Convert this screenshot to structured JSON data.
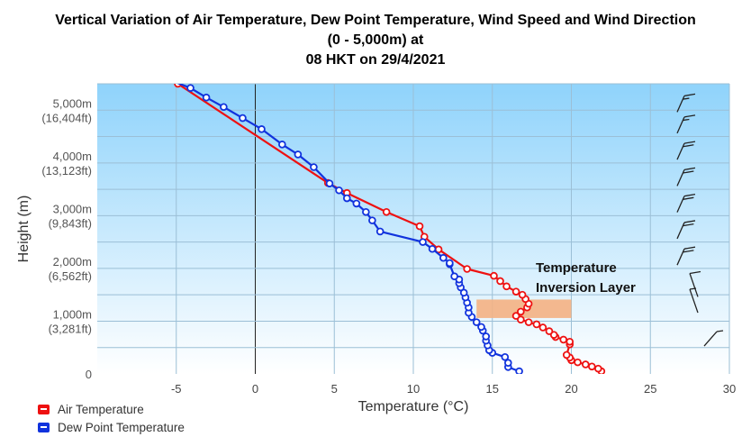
{
  "title": {
    "line1": "Vertical Variation of Air Temperature, Dew Point Temperature, Wind Speed and Wind Direction",
    "line2": "(0 - 5,000m) at",
    "line3": "08 HKT on 29/4/2021"
  },
  "legend": {
    "air": "Air Temperature",
    "dew": "Dew Point Temperature"
  },
  "colors": {
    "air": "#ee1111",
    "dew": "#1133dd",
    "inversion": "#f4b183",
    "plot_top": "#8fd3fb",
    "plot_bottom": "#ffffff"
  },
  "chart_data": {
    "type": "line",
    "xlabel": "Temperature (°C)",
    "ylabel": "Height (m)",
    "xlim": [
      -10,
      30
    ],
    "ylim": [
      0,
      5500
    ],
    "grid": true,
    "x_ticks": [
      "-5",
      "0",
      "5",
      "10",
      "15",
      "20",
      "25",
      "30"
    ],
    "x_tick_values": [
      -5,
      0,
      5,
      10,
      15,
      20,
      25,
      30
    ],
    "y_ticks": [
      {
        "value": 0,
        "label": "0",
        "sub": ""
      },
      {
        "value": 1000,
        "label": "1,000m",
        "sub": "(3,281ft)"
      },
      {
        "value": 2000,
        "label": "2,000m",
        "sub": "(6,562ft)"
      },
      {
        "value": 3000,
        "label": "3,000m",
        "sub": "(9,843ft)"
      },
      {
        "value": 4000,
        "label": "4,000m",
        "sub": "(13,123ft)"
      },
      {
        "value": 5000,
        "label": "5,000m",
        "sub": "(16,404ft)"
      }
    ],
    "annotation": {
      "line1": "Temperature",
      "line2": "Inversion Layer",
      "x": [
        14,
        20
      ],
      "y": [
        1060,
        1410
      ]
    },
    "series": [
      {
        "name": "Air Temperature",
        "points": [
          [
            21.9,
            50
          ],
          [
            21.7,
            100
          ],
          [
            21.3,
            140
          ],
          [
            20.9,
            180
          ],
          [
            20.4,
            220
          ],
          [
            20.0,
            260
          ],
          [
            19.9,
            310
          ],
          [
            19.7,
            360
          ],
          [
            19.9,
            560
          ],
          [
            19.9,
            610
          ],
          [
            19.5,
            650
          ],
          [
            19.0,
            700
          ],
          [
            18.9,
            740
          ],
          [
            18.6,
            810
          ],
          [
            18.2,
            880
          ],
          [
            17.8,
            940
          ],
          [
            17.3,
            980
          ],
          [
            16.8,
            1030
          ],
          [
            16.5,
            1100
          ],
          [
            16.8,
            1180
          ],
          [
            17.2,
            1260
          ],
          [
            17.3,
            1330
          ],
          [
            17.1,
            1420
          ],
          [
            16.9,
            1500
          ],
          [
            16.5,
            1560
          ],
          [
            15.9,
            1660
          ],
          [
            15.5,
            1760
          ],
          [
            15.1,
            1860
          ],
          [
            13.4,
            1990
          ],
          [
            11.6,
            2360
          ],
          [
            10.7,
            2600
          ],
          [
            10.4,
            2800
          ],
          [
            8.3,
            3070
          ],
          [
            5.8,
            3430
          ],
          [
            4.6,
            3620
          ],
          [
            -4.9,
            5500
          ]
        ]
      },
      {
        "name": "Dew Point Temperature",
        "points": [
          [
            16.7,
            50
          ],
          [
            16.0,
            130
          ],
          [
            16.0,
            210
          ],
          [
            15.8,
            320
          ],
          [
            15.0,
            400
          ],
          [
            14.8,
            450
          ],
          [
            14.7,
            540
          ],
          [
            14.6,
            630
          ],
          [
            14.6,
            710
          ],
          [
            14.4,
            820
          ],
          [
            14.3,
            890
          ],
          [
            14.0,
            980
          ],
          [
            13.7,
            1080
          ],
          [
            13.5,
            1160
          ],
          [
            13.5,
            1260
          ],
          [
            13.4,
            1350
          ],
          [
            13.3,
            1450
          ],
          [
            13.2,
            1540
          ],
          [
            13.0,
            1640
          ],
          [
            12.9,
            1720
          ],
          [
            12.9,
            1790
          ],
          [
            12.6,
            1850
          ],
          [
            12.3,
            2080
          ],
          [
            12.3,
            2100
          ],
          [
            11.9,
            2200
          ],
          [
            11.2,
            2370
          ],
          [
            10.6,
            2500
          ],
          [
            7.9,
            2700
          ],
          [
            7.4,
            2910
          ],
          [
            7.0,
            3070
          ],
          [
            6.4,
            3230
          ],
          [
            5.8,
            3330
          ],
          [
            5.3,
            3480
          ],
          [
            4.7,
            3610
          ],
          [
            3.7,
            3920
          ],
          [
            2.7,
            4160
          ],
          [
            1.7,
            4350
          ],
          [
            0.4,
            4640
          ],
          [
            -0.8,
            4850
          ],
          [
            -2.0,
            5060
          ],
          [
            -3.1,
            5240
          ],
          [
            -4.1,
            5420
          ],
          [
            -5.8,
            5620
          ]
        ]
      }
    ],
    "wind_barbs": [
      {
        "height": 5100,
        "speed_kt": 15
      },
      {
        "height": 4700,
        "speed_kt": 15
      },
      {
        "height": 4200,
        "speed_kt": 20
      },
      {
        "height": 3700,
        "speed_kt": 20
      },
      {
        "height": 3200,
        "speed_kt": 20
      },
      {
        "height": 2700,
        "speed_kt": 20
      },
      {
        "height": 2200,
        "speed_kt": 20
      },
      {
        "height": 1700,
        "speed_kt": 10
      },
      {
        "height": 1400,
        "speed_kt": 5
      },
      {
        "height": 700,
        "speed_kt": 5
      }
    ]
  }
}
